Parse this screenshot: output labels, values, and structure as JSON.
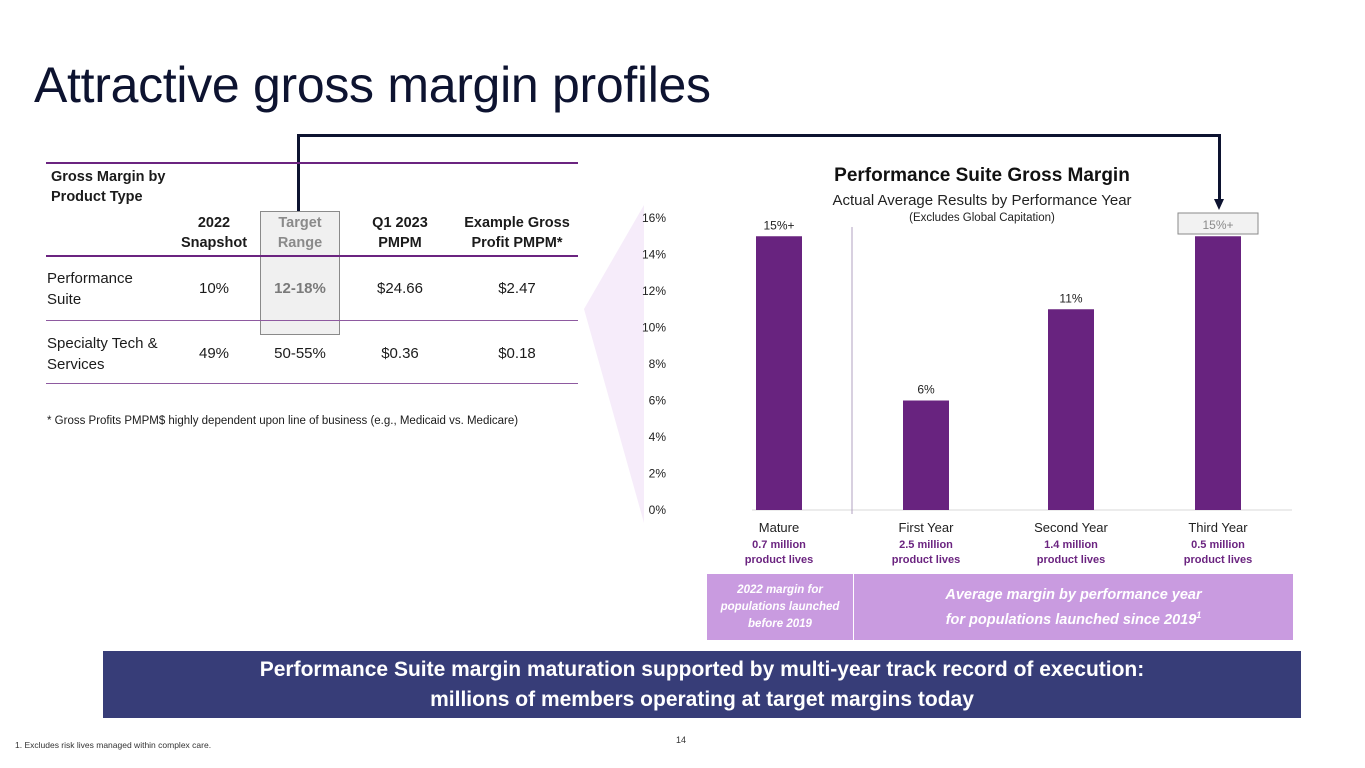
{
  "slide": {
    "title": "Attractive gross margin profiles",
    "page_number": "14",
    "footnote": "1.    Excludes risk lives managed within complex care."
  },
  "table": {
    "title": "Gross Margin by Product Type",
    "headers": {
      "snapshot_line1": "2022",
      "snapshot_line2": "Snapshot",
      "target_line1": "Target",
      "target_line2": "Range",
      "pmpm_line1": "Q1 2023",
      "pmpm_line2": "PMPM",
      "profit_line1": "Example Gross",
      "profit_line2": "Profit PMPM*"
    },
    "rows": [
      {
        "label_line1": "Performance",
        "label_line2": "Suite",
        "snapshot": "10%",
        "target": "12-18%",
        "pmpm": "$24.66",
        "profit": "$2.47"
      },
      {
        "label_line1": "Specialty Tech &",
        "label_line2": "Services",
        "snapshot": "49%",
        "target": "50-55%",
        "pmpm": "$0.36",
        "profit": "$0.18"
      }
    ],
    "footnote": "* Gross Profits PMPM$ highly dependent upon line of business (e.g., Medicaid vs. Medicare)"
  },
  "chart_data": {
    "type": "bar",
    "title": "Performance Suite Gross Margin",
    "subtitle": "Actual Average Results by Performance Year",
    "note": "(Excludes Global Capitation)",
    "categories": [
      "Mature",
      "First Year",
      "Second Year",
      "Third Year"
    ],
    "category_sublabels": [
      [
        "0.7 million",
        "product lives"
      ],
      [
        "2.5 million",
        "product lives"
      ],
      [
        "1.4 million",
        "product lives"
      ],
      [
        "0.5 million",
        "product lives"
      ]
    ],
    "values": [
      15,
      6,
      11,
      15
    ],
    "data_labels": [
      "15%+",
      "6%",
      "11%",
      "15%+"
    ],
    "y_ticks": [
      "0%",
      "2%",
      "4%",
      "6%",
      "8%",
      "10%",
      "12%",
      "14%",
      "16%"
    ],
    "ylim": [
      0,
      16
    ],
    "bar_color": "#68237f",
    "grid": false,
    "highlighted_label_index": 3
  },
  "legend": {
    "left": "2022 margin for populations launched before 2019",
    "right_line1": "Average margin by performance year",
    "right_line2": "for populations launched since 2019",
    "right_sup": "1"
  },
  "banner": {
    "line1": "Performance Suite margin maturation supported by multi-year track record of execution:",
    "line2": "millions of members operating at target margins today"
  },
  "colors": {
    "title": "#0d1330",
    "purple": "#68237f",
    "lavender": "#c99be0",
    "banner": "#373d78"
  }
}
